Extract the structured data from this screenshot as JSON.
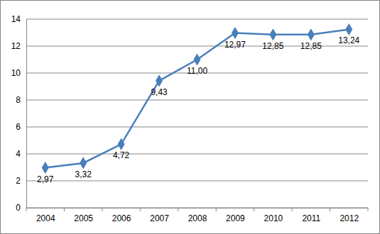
{
  "chart_data": {
    "type": "line",
    "categories": [
      "2004",
      "2005",
      "2006",
      "2007",
      "2008",
      "2009",
      "2010",
      "2011",
      "2012"
    ],
    "values": [
      2.97,
      3.32,
      4.72,
      9.43,
      11.0,
      12.97,
      12.85,
      12.85,
      13.24
    ],
    "value_labels": [
      "2,97",
      "3,32",
      "4,72",
      "9,43",
      "11,00",
      "12,97",
      "12,85",
      "12,85",
      "13,24"
    ],
    "color": "#4a7ebb",
    "marker": "diamond",
    "ylim": [
      0,
      14
    ],
    "yticks": [
      0,
      2,
      4,
      6,
      8,
      10,
      12,
      14
    ],
    "grid": true,
    "data_labels": true
  }
}
